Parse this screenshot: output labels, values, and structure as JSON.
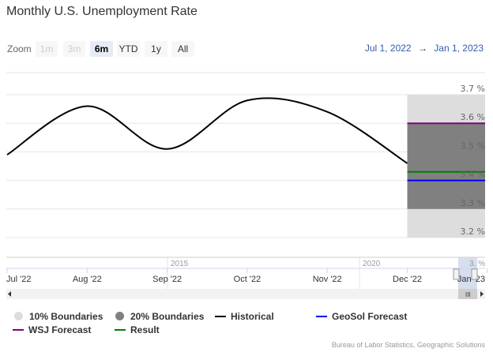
{
  "title": "Monthly U.S. Unemployment Rate",
  "range_selector": {
    "zoom_label": "Zoom",
    "buttons": [
      {
        "label": "1m",
        "state": "disabled"
      },
      {
        "label": "3m",
        "state": "disabled"
      },
      {
        "label": "6m",
        "state": "selected"
      },
      {
        "label": "YTD",
        "state": "normal"
      },
      {
        "label": "1y",
        "state": "normal"
      },
      {
        "label": "All",
        "state": "normal"
      }
    ],
    "from": "Jul 1, 2022",
    "arrow": "→",
    "to": "Jan 1, 2023"
  },
  "navigator": {
    "year_labels": [
      "2015",
      "2020"
    ],
    "partial_label": "3. %"
  },
  "credit": "Bureau of Labor Statistics, Geographic Solutions",
  "chart_data": {
    "type": "line",
    "title": "Monthly U.S. Unemployment Rate",
    "x_ticks": [
      "Jul '22",
      "Aug '22",
      "Sep '22",
      "Oct '22",
      "Nov '22",
      "Dec '22",
      "Jan '23"
    ],
    "y_ticks": [
      "3.7 %",
      "3.6 %",
      "3.5 %",
      "3.4 %",
      "3.3 %",
      "3.2 %"
    ],
    "ylim": [
      3.2,
      3.7
    ],
    "grid": true,
    "legend_placement": "bottom",
    "series": [
      {
        "name": "Historical",
        "color": "#000000",
        "x": [
          "Jul '22",
          "Aug '22",
          "Sep '22",
          "Oct '22",
          "Nov '22",
          "Dec '22"
        ],
        "values": [
          3.49,
          3.66,
          3.51,
          3.68,
          3.64,
          3.46
        ]
      },
      {
        "name": "10% Boundaries",
        "color": "#dddddd",
        "type": "arearange",
        "x": [
          "Dec '22",
          "Jan '23"
        ],
        "low": 3.2,
        "high": 3.7
      },
      {
        "name": "20% Boundaries",
        "color": "#808080",
        "type": "arearange",
        "x": [
          "Dec '22",
          "Jan '23"
        ],
        "low": 3.3,
        "high": 3.6
      },
      {
        "name": "GeoSol Forecast",
        "color": "#0000ff",
        "x": [
          "Dec '22",
          "Jan '23"
        ],
        "values": [
          3.4,
          3.4
        ]
      },
      {
        "name": "WSJ Forecast",
        "color": "#800080",
        "x": [
          "Dec '22",
          "Jan '23"
        ],
        "values": [
          3.6,
          3.6
        ]
      },
      {
        "name": "Result",
        "color": "#008000",
        "x": [
          "Dec '22",
          "Jan '23"
        ],
        "values": [
          3.43,
          3.43
        ]
      }
    ]
  }
}
